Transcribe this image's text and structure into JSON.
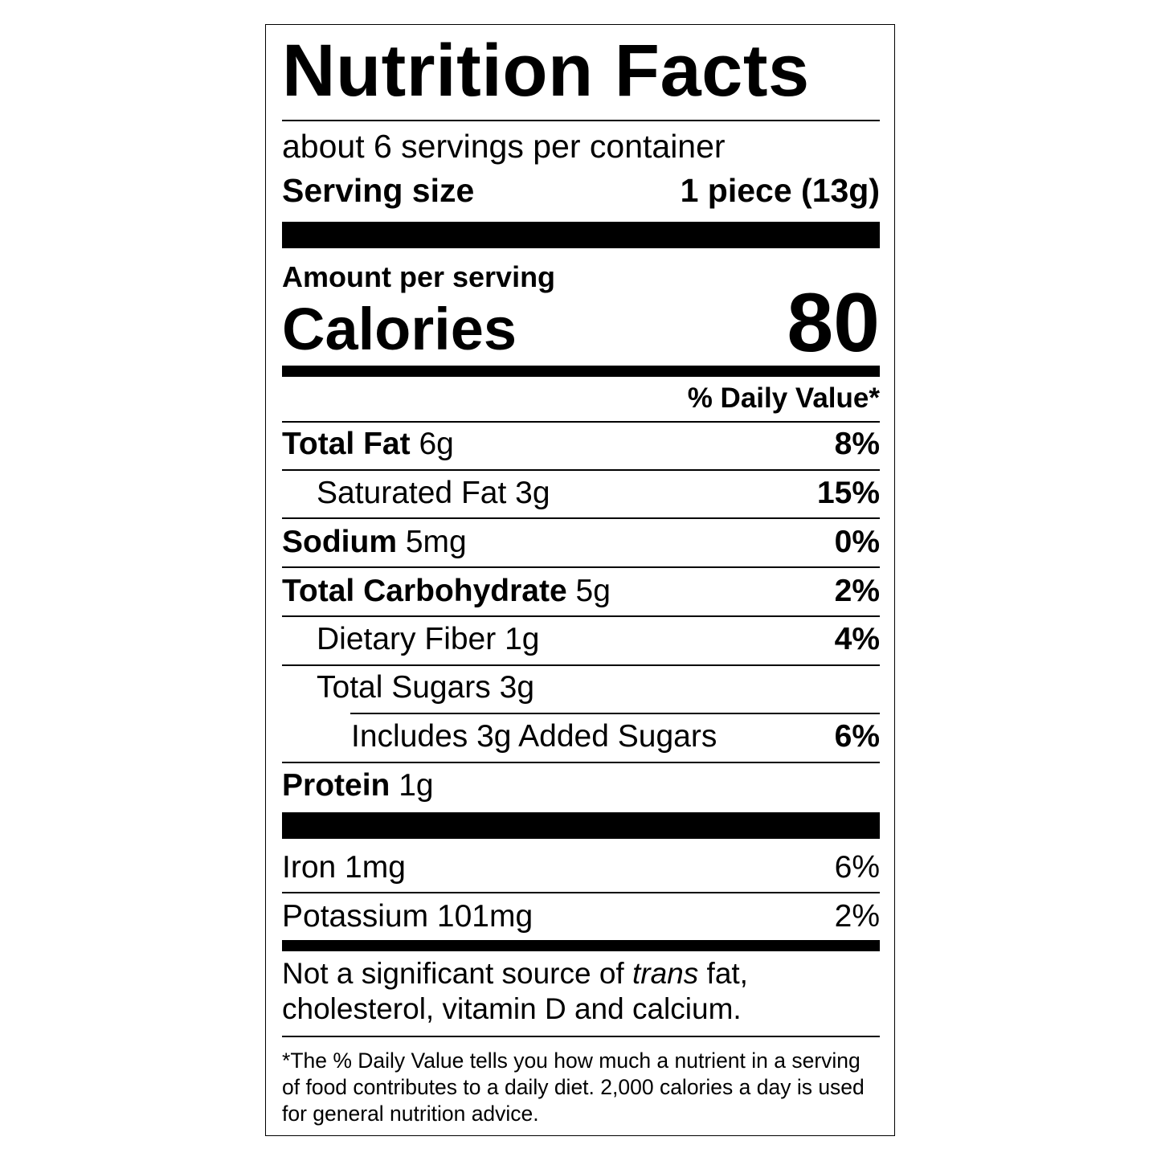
{
  "title": "Nutrition Facts",
  "servings_per_container": "about 6 servings per container",
  "serving_size": {
    "label": "Serving size",
    "value": "1 piece (13g)"
  },
  "amount_per_serving": "Amount per serving",
  "calories": {
    "label": "Calories",
    "value": "80"
  },
  "daily_value_header": "% Daily Value*",
  "nutrients": [
    {
      "name": "Total Fat",
      "amount": "6g",
      "dv": "8%"
    },
    {
      "name": "Saturated Fat",
      "amount": "3g",
      "dv": "15%"
    },
    {
      "name": "Sodium",
      "amount": "5mg",
      "dv": "0%"
    },
    {
      "name": "Total Carbohydrate",
      "amount": "5g",
      "dv": "2%"
    },
    {
      "name": "Dietary Fiber",
      "amount": "1g",
      "dv": "4%"
    },
    {
      "name": "Total Sugars",
      "amount": "3g",
      "dv": ""
    },
    {
      "name": "Includes 3g Added Sugars",
      "amount": "",
      "dv": "6%"
    },
    {
      "name": "Protein",
      "amount": "1g",
      "dv": ""
    }
  ],
  "minerals": [
    {
      "text": "Iron 1mg",
      "dv": "6%"
    },
    {
      "text": "Potassium 101mg",
      "dv": "2%"
    }
  ],
  "note": {
    "pre": "Not a significant source of ",
    "italic": "trans",
    "post": " fat, cholesterol, vitamin D and calcium."
  },
  "footnote": "*The % Daily Value tells you how much a nutrient in a serving of food contributes to a daily diet. 2,000 calories a day is used for general nutrition advice."
}
